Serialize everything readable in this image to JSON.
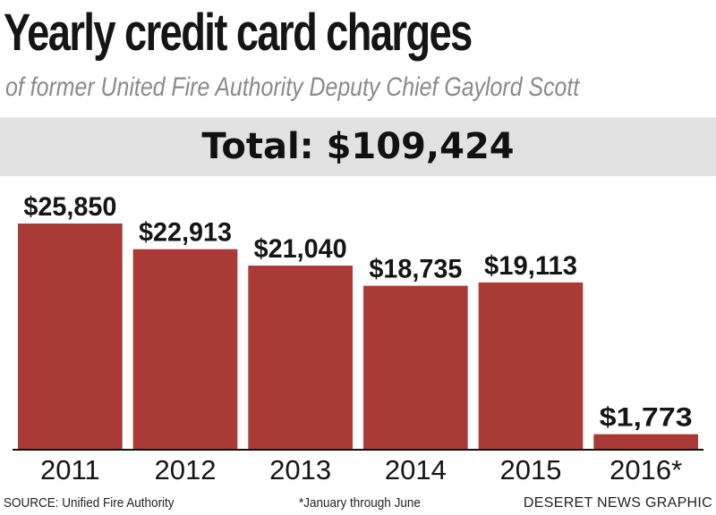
{
  "header": {
    "title": "Yearly credit card charges",
    "subtitle": "of former United Fire Authority Deputy Chief Gaylord Scott",
    "total": "Total: $109,424"
  },
  "footer": {
    "source": "SOURCE: Unified Fire Authority",
    "footnote": "*January through June",
    "credit": "DESERET NEWS GRAPHIC"
  },
  "colors": {
    "bar": "#a93a35",
    "total_band": "#e2e2e2",
    "axis": "#111111"
  },
  "chart_data": {
    "type": "bar",
    "title": "Yearly credit card charges",
    "categories": [
      "2011",
      "2012",
      "2013",
      "2014",
      "2015",
      "2016*"
    ],
    "values": [
      25850,
      22913,
      21040,
      18735,
      19113,
      1773
    ],
    "data_labels": [
      "$25,850",
      "$22,913",
      "$21,040",
      "$18,735",
      "$19,113",
      "$1,773"
    ],
    "ylim": [
      0,
      25850
    ],
    "grid": false,
    "legend": "none"
  }
}
